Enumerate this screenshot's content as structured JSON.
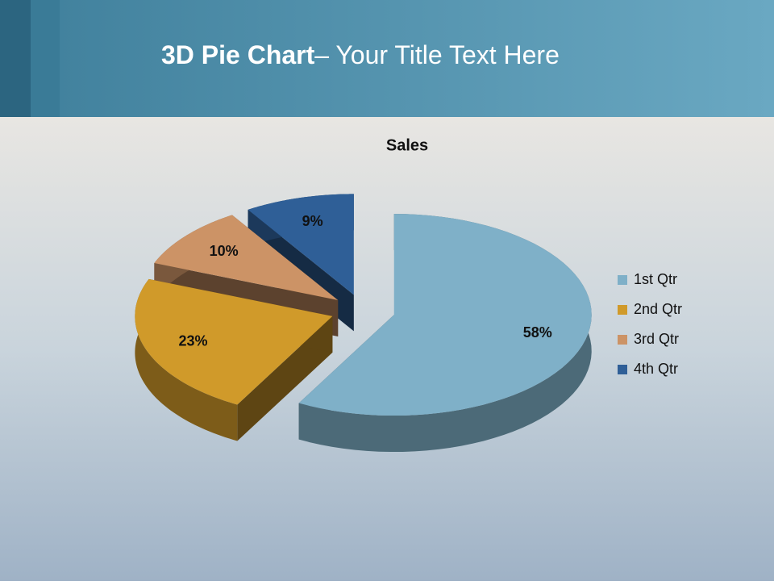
{
  "slide": {
    "title_bold": "3D Pie Chart",
    "title_rest": "– Your Title Text Here"
  },
  "chart_data": {
    "type": "pie",
    "title": "Sales",
    "categories": [
      "1st Qtr",
      "2nd Qtr",
      "3rd Qtr",
      "4th Qtr"
    ],
    "values": [
      58,
      23,
      10,
      9
    ],
    "value_labels": [
      "58%",
      "23%",
      "10%",
      "9%"
    ],
    "colors": [
      "#7fb0c8",
      "#d09a2a",
      "#cc9366",
      "#2f5f97"
    ],
    "legend": "right"
  }
}
